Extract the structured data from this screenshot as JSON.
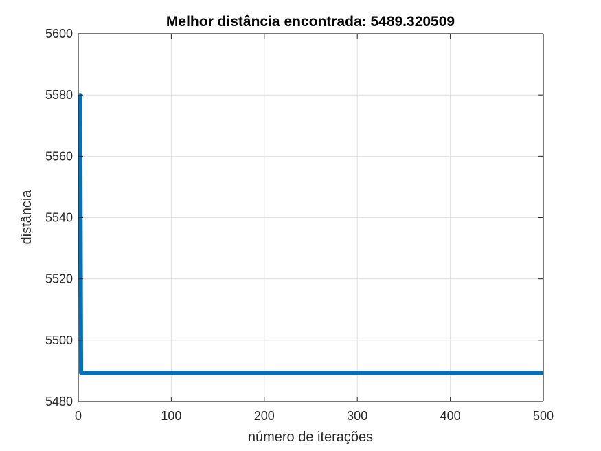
{
  "chart_data": {
    "type": "line",
    "title": "Melhor distância encontrada: 5489.320509",
    "xlabel": "número de iterações",
    "ylabel": "distância",
    "xlim": [
      0,
      500
    ],
    "ylim": [
      5480,
      5600
    ],
    "x_ticks": [
      0,
      100,
      200,
      300,
      400,
      500
    ],
    "y_ticks": [
      5480,
      5500,
      5520,
      5540,
      5560,
      5580,
      5600
    ],
    "x_tick_labels": [
      "0",
      "100",
      "200",
      "300",
      "400",
      "500"
    ],
    "y_tick_labels": [
      "5480",
      "5500",
      "5520",
      "5540",
      "5560",
      "5580",
      "5600"
    ],
    "grid": true,
    "series": [
      {
        "color": "#0072BD",
        "x": [
          1,
          2,
          3,
          4,
          5,
          500
        ],
        "y": [
          5580,
          5580,
          5489.32,
          5489.32,
          5489.32,
          5489.32
        ]
      }
    ]
  },
  "colors": {
    "axis": "#262626",
    "grid": "#dfdfdf",
    "line": "#0072BD"
  }
}
